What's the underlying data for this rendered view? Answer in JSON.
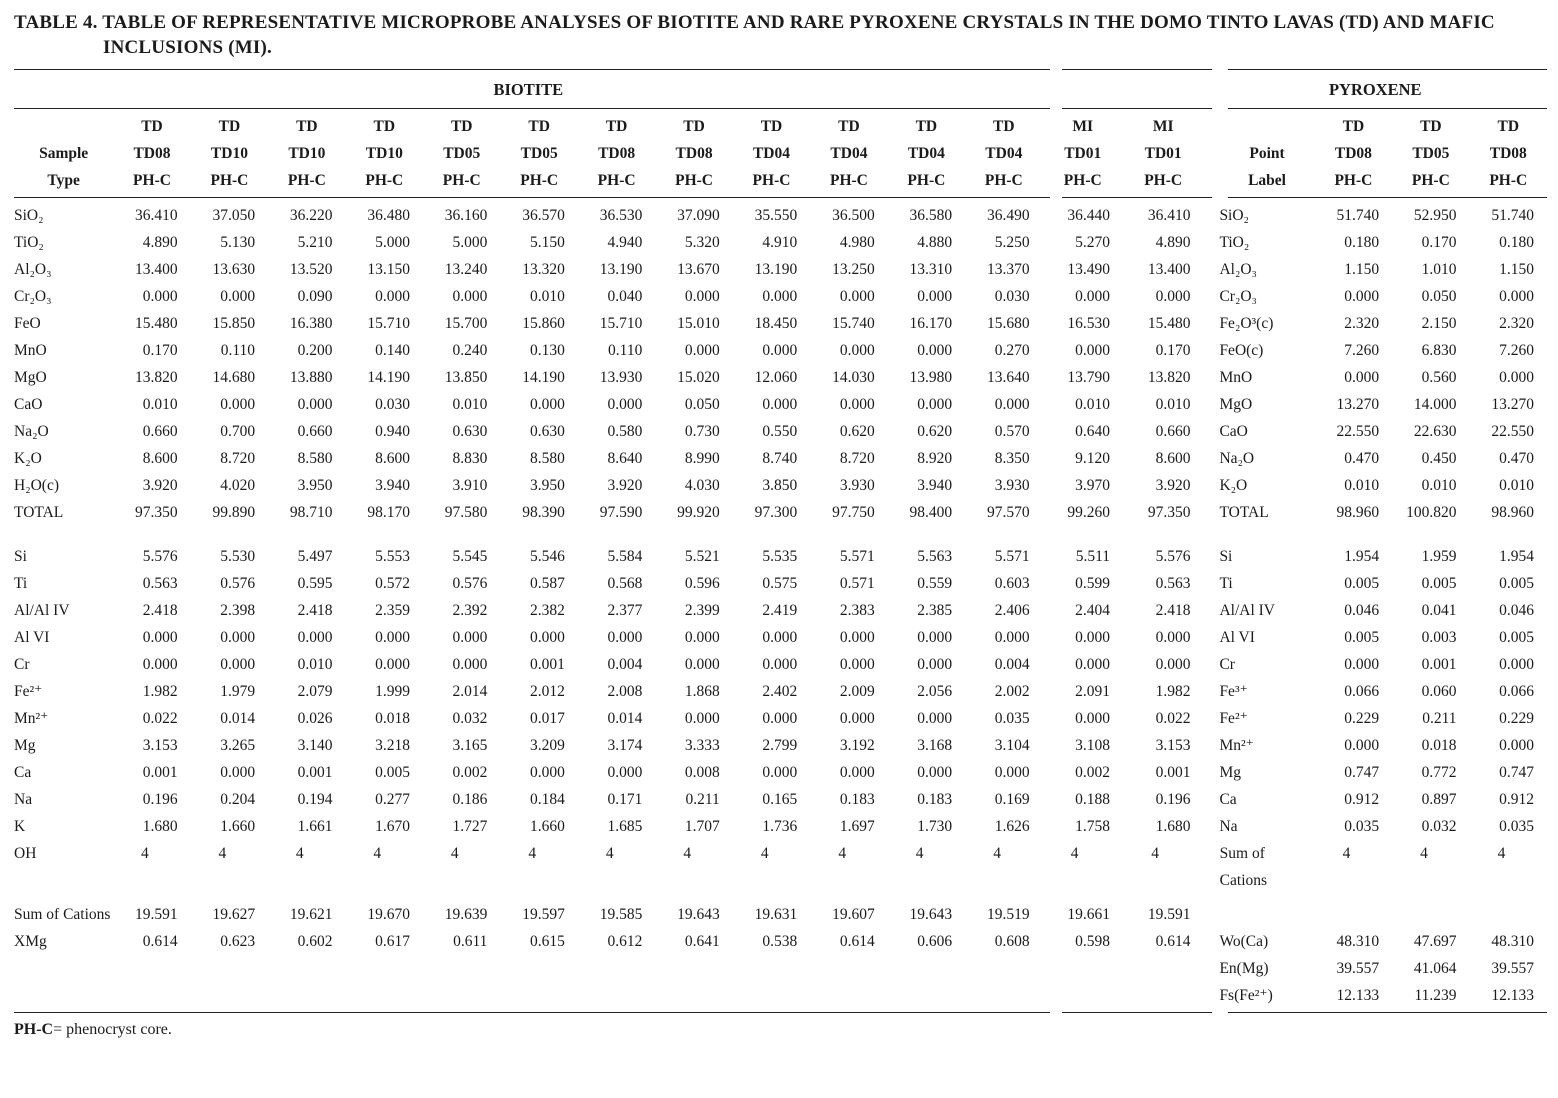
{
  "title": {
    "line1": "TABLE 4. TABLE OF REPRESENTATIVE MICROPROBE ANALYSES OF BIOTITE AND RARE PYROXENE CRYSTALS IN THE DOMO TINTO LAVAS (TD) AND MAFIC",
    "line2": "INCLUSIONS (MI)."
  },
  "table": {
    "groups": {
      "biotite": "BIOTITE",
      "pyroxene": "PYROXENE"
    },
    "header": {
      "left": [
        "",
        "Sample",
        "Type"
      ],
      "pleft": [
        "",
        "Point",
        "Label"
      ],
      "bio": [
        [
          "TD",
          "TD08",
          "PH-C"
        ],
        [
          "TD",
          "TD10",
          "PH-C"
        ],
        [
          "TD",
          "TD10",
          "PH-C"
        ],
        [
          "TD",
          "TD10",
          "PH-C"
        ],
        [
          "TD",
          "TD05",
          "PH-C"
        ],
        [
          "TD",
          "TD05",
          "PH-C"
        ],
        [
          "TD",
          "TD08",
          "PH-C"
        ],
        [
          "TD",
          "TD08",
          "PH-C"
        ],
        [
          "TD",
          "TD04",
          "PH-C"
        ],
        [
          "TD",
          "TD04",
          "PH-C"
        ],
        [
          "TD",
          "TD04",
          "PH-C"
        ],
        [
          "TD",
          "TD04",
          "PH-C"
        ]
      ],
      "mi": [
        [
          "MI",
          "TD01",
          "PH-C"
        ],
        [
          "MI",
          "TD01",
          "PH-C"
        ]
      ],
      "pyx": [
        [
          "TD",
          "TD08",
          "PH-C"
        ],
        [
          "TD",
          "TD05",
          "PH-C"
        ],
        [
          "TD",
          "TD08",
          "PH-C"
        ]
      ]
    },
    "rows": [
      {
        "t": "rule"
      },
      {
        "t": "group"
      },
      {
        "t": "rule"
      },
      {
        "t": "head"
      },
      {
        "t": "rule"
      },
      {
        "t": "d",
        "l": "SiO₂",
        "b": [
          "36.410",
          "37.050",
          "36.220",
          "36.480",
          "36.160",
          "36.570",
          "36.530",
          "37.090",
          "35.550",
          "36.500",
          "36.580",
          "36.490"
        ],
        "m": [
          "36.440",
          "36.410"
        ],
        "pl": "SiO₂",
        "p": [
          "51.740",
          "52.950",
          "51.740"
        ]
      },
      {
        "t": "d",
        "l": "TiO₂",
        "b": [
          "4.890",
          "5.130",
          "5.210",
          "5.000",
          "5.000",
          "5.150",
          "4.940",
          "5.320",
          "4.910",
          "4.980",
          "4.880",
          "5.250"
        ],
        "m": [
          "5.270",
          "4.890"
        ],
        "pl": "TiO₂",
        "p": [
          "0.180",
          "0.170",
          "0.180"
        ]
      },
      {
        "t": "d",
        "l": "Al₂O₃",
        "b": [
          "13.400",
          "13.630",
          "13.520",
          "13.150",
          "13.240",
          "13.320",
          "13.190",
          "13.670",
          "13.190",
          "13.250",
          "13.310",
          "13.370"
        ],
        "m": [
          "13.490",
          "13.400"
        ],
        "pl": "Al₂O₃",
        "p": [
          "1.150",
          "1.010",
          "1.150"
        ]
      },
      {
        "t": "d",
        "l": "Cr₂O₃",
        "b": [
          "0.000",
          "0.000",
          "0.090",
          "0.000",
          "0.000",
          "0.010",
          "0.040",
          "0.000",
          "0.000",
          "0.000",
          "0.000",
          "0.030"
        ],
        "m": [
          "0.000",
          "0.000"
        ],
        "pl": "Cr₂O₃",
        "p": [
          "0.000",
          "0.050",
          "0.000"
        ]
      },
      {
        "t": "d",
        "l": "FeO",
        "b": [
          "15.480",
          "15.850",
          "16.380",
          "15.710",
          "15.700",
          "15.860",
          "15.710",
          "15.010",
          "18.450",
          "15.740",
          "16.170",
          "15.680"
        ],
        "m": [
          "16.530",
          "15.480"
        ],
        "pl": "Fe₂O³(c)",
        "p": [
          "2.320",
          "2.150",
          "2.320"
        ]
      },
      {
        "t": "d",
        "l": "MnO",
        "b": [
          "0.170",
          "0.110",
          "0.200",
          "0.140",
          "0.240",
          "0.130",
          "0.110",
          "0.000",
          "0.000",
          "0.000",
          "0.000",
          "0.270"
        ],
        "m": [
          "0.000",
          "0.170"
        ],
        "pl": "FeO(c)",
        "p": [
          "7.260",
          "6.830",
          "7.260"
        ]
      },
      {
        "t": "d",
        "l": "MgO",
        "b": [
          "13.820",
          "14.680",
          "13.880",
          "14.190",
          "13.850",
          "14.190",
          "13.930",
          "15.020",
          "12.060",
          "14.030",
          "13.980",
          "13.640"
        ],
        "m": [
          "13.790",
          "13.820"
        ],
        "pl": "MnO",
        "p": [
          "0.000",
          "0.560",
          "0.000"
        ]
      },
      {
        "t": "d",
        "l": "CaO",
        "b": [
          "0.010",
          "0.000",
          "0.000",
          "0.030",
          "0.010",
          "0.000",
          "0.000",
          "0.050",
          "0.000",
          "0.000",
          "0.000",
          "0.000"
        ],
        "m": [
          "0.010",
          "0.010"
        ],
        "pl": "MgO",
        "p": [
          "13.270",
          "14.000",
          "13.270"
        ]
      },
      {
        "t": "d",
        "l": "Na₂O",
        "b": [
          "0.660",
          "0.700",
          "0.660",
          "0.940",
          "0.630",
          "0.630",
          "0.580",
          "0.730",
          "0.550",
          "0.620",
          "0.620",
          "0.570"
        ],
        "m": [
          "0.640",
          "0.660"
        ],
        "pl": "CaO",
        "p": [
          "22.550",
          "22.630",
          "22.550"
        ]
      },
      {
        "t": "d",
        "l": "K₂O",
        "b": [
          "8.600",
          "8.720",
          "8.580",
          "8.600",
          "8.830",
          "8.580",
          "8.640",
          "8.990",
          "8.740",
          "8.720",
          "8.920",
          "8.350"
        ],
        "m": [
          "9.120",
          "8.600"
        ],
        "pl": "Na₂O",
        "p": [
          "0.470",
          "0.450",
          "0.470"
        ]
      },
      {
        "t": "d",
        "l": "H₂O(c)",
        "b": [
          "3.920",
          "4.020",
          "3.950",
          "3.940",
          "3.910",
          "3.950",
          "3.920",
          "4.030",
          "3.850",
          "3.930",
          "3.940",
          "3.930"
        ],
        "m": [
          "3.970",
          "3.920"
        ],
        "pl": "K₂O",
        "p": [
          "0.010",
          "0.010",
          "0.010"
        ]
      },
      {
        "t": "d",
        "l": "TOTAL",
        "b": [
          "97.350",
          "99.890",
          "98.710",
          "98.170",
          "97.580",
          "98.390",
          "97.590",
          "99.920",
          "97.300",
          "97.750",
          "98.400",
          "97.570"
        ],
        "m": [
          "99.260",
          "97.350"
        ],
        "pl": "TOTAL",
        "p": [
          "98.960",
          "100.820",
          "98.960"
        ]
      },
      {
        "t": "gap"
      },
      {
        "t": "d",
        "l": "Si",
        "b": [
          "5.576",
          "5.530",
          "5.497",
          "5.553",
          "5.545",
          "5.546",
          "5.584",
          "5.521",
          "5.535",
          "5.571",
          "5.563",
          "5.571"
        ],
        "m": [
          "5.511",
          "5.576"
        ],
        "pl": "Si",
        "p": [
          "1.954",
          "1.959",
          "1.954"
        ]
      },
      {
        "t": "d",
        "l": "Ti",
        "b": [
          "0.563",
          "0.576",
          "0.595",
          "0.572",
          "0.576",
          "0.587",
          "0.568",
          "0.596",
          "0.575",
          "0.571",
          "0.559",
          "0.603"
        ],
        "m": [
          "0.599",
          "0.563"
        ],
        "pl": "Ti",
        "p": [
          "0.005",
          "0.005",
          "0.005"
        ]
      },
      {
        "t": "d",
        "l": "Al/Al IV",
        "b": [
          "2.418",
          "2.398",
          "2.418",
          "2.359",
          "2.392",
          "2.382",
          "2.377",
          "2.399",
          "2.419",
          "2.383",
          "2.385",
          "2.406"
        ],
        "m": [
          "2.404",
          "2.418"
        ],
        "pl": "Al/Al IV",
        "p": [
          "0.046",
          "0.041",
          "0.046"
        ]
      },
      {
        "t": "d",
        "l": "Al VI",
        "b": [
          "0.000",
          "0.000",
          "0.000",
          "0.000",
          "0.000",
          "0.000",
          "0.000",
          "0.000",
          "0.000",
          "0.000",
          "0.000",
          "0.000"
        ],
        "m": [
          "0.000",
          "0.000"
        ],
        "pl": "Al VI",
        "p": [
          "0.005",
          "0.003",
          "0.005"
        ]
      },
      {
        "t": "d",
        "l": "Cr",
        "b": [
          "0.000",
          "0.000",
          "0.010",
          "0.000",
          "0.000",
          "0.001",
          "0.004",
          "0.000",
          "0.000",
          "0.000",
          "0.000",
          "0.004"
        ],
        "m": [
          "0.000",
          "0.000"
        ],
        "pl": "Cr",
        "p": [
          "0.000",
          "0.001",
          "0.000"
        ]
      },
      {
        "t": "d",
        "l": "Fe²⁺",
        "b": [
          "1.982",
          "1.979",
          "2.079",
          "1.999",
          "2.014",
          "2.012",
          "2.008",
          "1.868",
          "2.402",
          "2.009",
          "2.056",
          "2.002"
        ],
        "m": [
          "2.091",
          "1.982"
        ],
        "pl": "Fe³⁺",
        "p": [
          "0.066",
          "0.060",
          "0.066"
        ]
      },
      {
        "t": "d",
        "l": "Mn²⁺",
        "b": [
          "0.022",
          "0.014",
          "0.026",
          "0.018",
          "0.032",
          "0.017",
          "0.014",
          "0.000",
          "0.000",
          "0.000",
          "0.000",
          "0.035"
        ],
        "m": [
          "0.000",
          "0.022"
        ],
        "pl": "Fe²⁺",
        "p": [
          "0.229",
          "0.211",
          "0.229"
        ]
      },
      {
        "t": "d",
        "l": "Mg",
        "b": [
          "3.153",
          "3.265",
          "3.140",
          "3.218",
          "3.165",
          "3.209",
          "3.174",
          "3.333",
          "2.799",
          "3.192",
          "3.168",
          "3.104"
        ],
        "m": [
          "3.108",
          "3.153"
        ],
        "pl": "Mn²⁺",
        "p": [
          "0.000",
          "0.018",
          "0.000"
        ]
      },
      {
        "t": "d",
        "l": "Ca",
        "b": [
          "0.001",
          "0.000",
          "0.001",
          "0.005",
          "0.002",
          "0.000",
          "0.000",
          "0.008",
          "0.000",
          "0.000",
          "0.000",
          "0.000"
        ],
        "m": [
          "0.002",
          "0.001"
        ],
        "pl": "Mg",
        "p": [
          "0.747",
          "0.772",
          "0.747"
        ]
      },
      {
        "t": "d",
        "l": "Na",
        "b": [
          "0.196",
          "0.204",
          "0.194",
          "0.277",
          "0.186",
          "0.184",
          "0.171",
          "0.211",
          "0.165",
          "0.183",
          "0.183",
          "0.169"
        ],
        "m": [
          "0.188",
          "0.196"
        ],
        "pl": "Ca",
        "p": [
          "0.912",
          "0.897",
          "0.912"
        ]
      },
      {
        "t": "d",
        "l": "K",
        "b": [
          "1.680",
          "1.660",
          "1.661",
          "1.670",
          "1.727",
          "1.660",
          "1.685",
          "1.707",
          "1.736",
          "1.697",
          "1.730",
          "1.626"
        ],
        "m": [
          "1.758",
          "1.680"
        ],
        "pl": "Na",
        "p": [
          "0.035",
          "0.032",
          "0.035"
        ]
      },
      {
        "t": "d",
        "l": "OH",
        "align": "left",
        "b": [
          "4",
          "4",
          "4",
          "4",
          "4",
          "4",
          "4",
          "4",
          "4",
          "4",
          "4",
          "4"
        ],
        "m": [
          "4",
          "4"
        ],
        "pl": "Sum of Cations",
        "p": [
          "4",
          "4",
          "4"
        ]
      },
      {
        "t": "gapsm"
      },
      {
        "t": "d",
        "l": "Sum of Cations",
        "b": [
          "19.591",
          "19.627",
          "19.621",
          "19.670",
          "19.639",
          "19.597",
          "19.585",
          "19.643",
          "19.631",
          "19.607",
          "19.643",
          "19.519"
        ],
        "m": [
          "19.661",
          "19.591"
        ],
        "pl": "",
        "p": [
          "",
          "",
          ""
        ]
      },
      {
        "t": "d",
        "l": "XMg",
        "b": [
          "0.614",
          "0.623",
          "0.602",
          "0.617",
          "0.611",
          "0.615",
          "0.612",
          "0.641",
          "0.538",
          "0.614",
          "0.606",
          "0.608"
        ],
        "m": [
          "0.598",
          "0.614"
        ],
        "pl": "Wo(Ca)",
        "p": [
          "48.310",
          "47.697",
          "48.310"
        ]
      },
      {
        "t": "d",
        "l": "",
        "pl": "En(Mg)",
        "p": [
          "39.557",
          "41.064",
          "39.557"
        ]
      },
      {
        "t": "d",
        "l": "",
        "pl": "Fs(Fe²⁺)",
        "p": [
          "12.133",
          "11.239",
          "12.133"
        ]
      },
      {
        "t": "rule"
      }
    ]
  },
  "footnote": {
    "bold": "PH-C",
    "rest": "= phenocryst core."
  }
}
